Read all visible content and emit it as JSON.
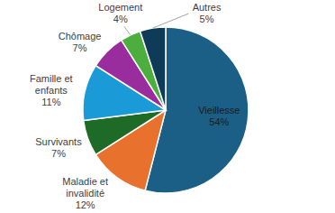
{
  "chart_data": {
    "type": "pie",
    "categories": [
      "Vieillesse",
      "Maladie et invalidité",
      "Survivants",
      "Famille et enfants",
      "Chômage",
      "Logement",
      "Autres"
    ],
    "values": [
      54,
      12,
      7,
      11,
      7,
      4,
      5
    ],
    "value_labels": [
      "54%",
      "12%",
      "7%",
      "11%",
      "7%",
      "4%",
      "5%"
    ],
    "colors": [
      "#1b5f87",
      "#e8722d",
      "#1d6b26",
      "#1a9bd8",
      "#9a2d9e",
      "#4cae3d",
      "#0e3b58"
    ],
    "data_labels": true
  }
}
